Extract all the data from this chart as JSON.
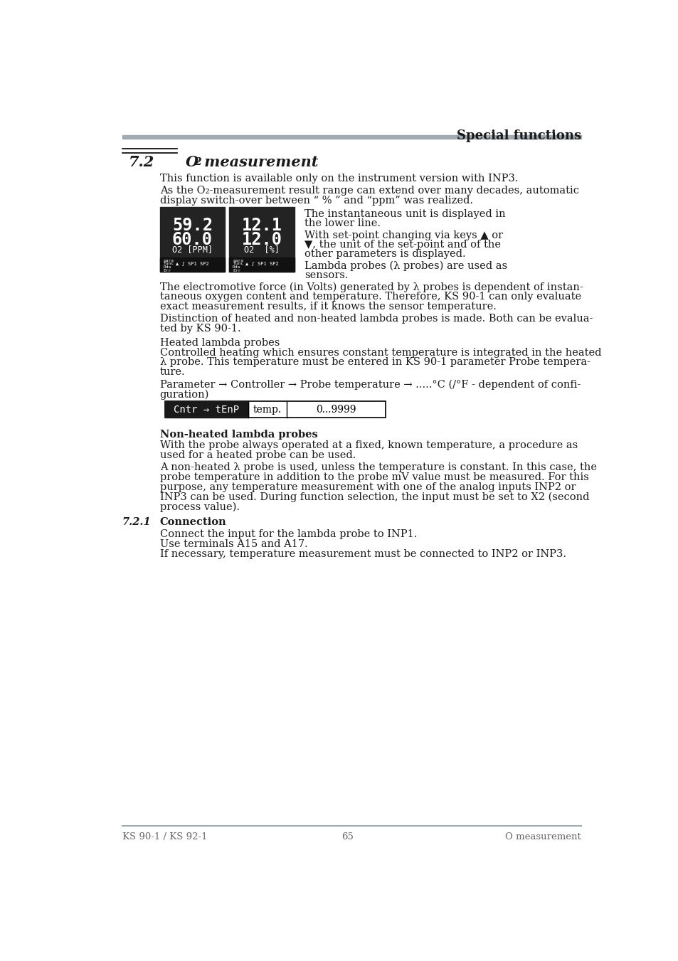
{
  "page_title": "Special functions",
  "header_line_color": "#a0aab0",
  "body_text_color": "#1a1a1a",
  "footer_left": "KS 90-1 / KS 92-1",
  "footer_center": "65",
  "footer_right": "O measurement",
  "bg_color": "#ffffff",
  "para1": "This function is available only on the instrument version with INP3.",
  "para2a": "As the O₂-measurement result range can extend over many decades, automatic",
  "para2b": "display switch-over between “ % ” and “ppm” was realized.",
  "right_text1a": "The instantaneous unit is displayed in",
  "right_text1b": "the lower line.",
  "right_text2a": "With set-point changing via keys ▲ or",
  "right_text2b": "▼, the unit of the set-point and of the",
  "right_text2c": "other parameters is displayed.",
  "right_text3a": "Lambda probes (λ probes) are used as",
  "right_text3b": "sensors.",
  "para3a": "The electromotive force (in Volts) generated by λ probes is dependent of instan-",
  "para3b": "taneous oxygen content and temperature. Therefore, KS 90-1 can only evaluate",
  "para3c": "exact measurement results, if it knows the sensor temperature.",
  "para4a": "Distinction of heated and non-heated lambda probes is made. Both can be evalua-",
  "para4b": "ted by KS 90-1.",
  "para5a": "Heated lambda probes",
  "para5b": "Controlled heating which ensures constant temperature is integrated in the heated",
  "para5c": "λ probe. This temperature must be entered in KS 90-1 parameter Probe tempera-",
  "para5d": "ture.",
  "para6a": "Parameter → Controller → Probe temperature → .....°C (/°F - dependent of confi-",
  "para6b": "guration)",
  "table_left": "Cntr → tEnP",
  "table_mid": "temp.",
  "table_right": "0...9999",
  "bold_heading": "Non-heated lambda probes",
  "para7a": "With the probe always operated at a fixed, known temperature, a procedure as",
  "para7b": "used for a heated probe can be used.",
  "para8a": "A non-heated λ probe is used, unless the temperature is constant. In this case, the",
  "para8b": "probe temperature in addition to the probe mV value must be measured. For this",
  "para8c": "purpose, any temperature measurement with one of the analog inputs INP2 or",
  "para8d": "INP3 can be used. During function selection, the input must be set to X2 (second",
  "para8e": "process value).",
  "sub_num": "7.2.1",
  "sub_title": "Connection",
  "para9a": "Connect the input for the lambda probe to INP1.",
  "para9b": "Use terminals A15 and A17.",
  "para9c": "If necessary, temperature measurement must be connected to INP2 or INP3."
}
